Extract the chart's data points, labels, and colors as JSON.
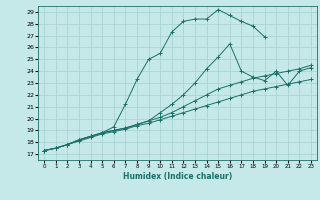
{
  "xlabel": "Humidex (Indice chaleur)",
  "xlim": [
    -0.5,
    23.5
  ],
  "ylim": [
    16.5,
    29.5
  ],
  "xticks": [
    0,
    1,
    2,
    3,
    4,
    5,
    6,
    7,
    8,
    9,
    10,
    11,
    12,
    13,
    14,
    15,
    16,
    17,
    18,
    19,
    20,
    21,
    22,
    23
  ],
  "yticks": [
    17,
    18,
    19,
    20,
    21,
    22,
    23,
    24,
    25,
    26,
    27,
    28,
    29
  ],
  "bg_color": "#c5e8e8",
  "line_color": "#1a7068",
  "grid_color": "#a8d0d0",
  "curves": [
    {
      "x": [
        0,
        1,
        2,
        3,
        4,
        5,
        6,
        7,
        8,
        9,
        10,
        11,
        12,
        13,
        14,
        15,
        16,
        17,
        18,
        19
      ],
      "y": [
        17.3,
        17.5,
        17.8,
        18.2,
        18.5,
        18.8,
        19.3,
        21.2,
        23.3,
        25.0,
        25.5,
        27.3,
        28.2,
        28.4,
        28.4,
        29.2,
        28.7,
        28.2,
        27.8,
        26.9
      ]
    },
    {
      "x": [
        0,
        1,
        2,
        3,
        4,
        5,
        6,
        7,
        8,
        9,
        10,
        11,
        12,
        13,
        14,
        15,
        16,
        17,
        18,
        19,
        20,
        21,
        22,
        23
      ],
      "y": [
        17.3,
        17.5,
        17.8,
        18.2,
        18.5,
        18.8,
        19.0,
        19.2,
        19.5,
        19.8,
        20.5,
        21.2,
        22.0,
        23.0,
        24.2,
        25.2,
        26.3,
        24.0,
        23.5,
        23.2,
        24.0,
        22.8,
        24.0,
        24.3
      ]
    },
    {
      "x": [
        0,
        1,
        2,
        3,
        4,
        5,
        6,
        7,
        8,
        9,
        10,
        11,
        12,
        13,
        14,
        15,
        16,
        17,
        18,
        19,
        20,
        21,
        22,
        23
      ],
      "y": [
        17.3,
        17.5,
        17.8,
        18.2,
        18.5,
        18.8,
        19.0,
        19.2,
        19.5,
        19.8,
        20.1,
        20.5,
        21.0,
        21.5,
        22.0,
        22.5,
        22.8,
        23.1,
        23.4,
        23.6,
        23.8,
        24.0,
        24.2,
        24.5
      ]
    },
    {
      "x": [
        0,
        1,
        2,
        3,
        4,
        5,
        6,
        7,
        8,
        9,
        10,
        11,
        12,
        13,
        14,
        15,
        16,
        17,
        18,
        19,
        20,
        21,
        22,
        23
      ],
      "y": [
        17.3,
        17.5,
        17.8,
        18.1,
        18.4,
        18.7,
        18.9,
        19.1,
        19.4,
        19.6,
        19.9,
        20.2,
        20.5,
        20.8,
        21.1,
        21.4,
        21.7,
        22.0,
        22.3,
        22.5,
        22.7,
        22.9,
        23.1,
        23.3
      ]
    }
  ]
}
